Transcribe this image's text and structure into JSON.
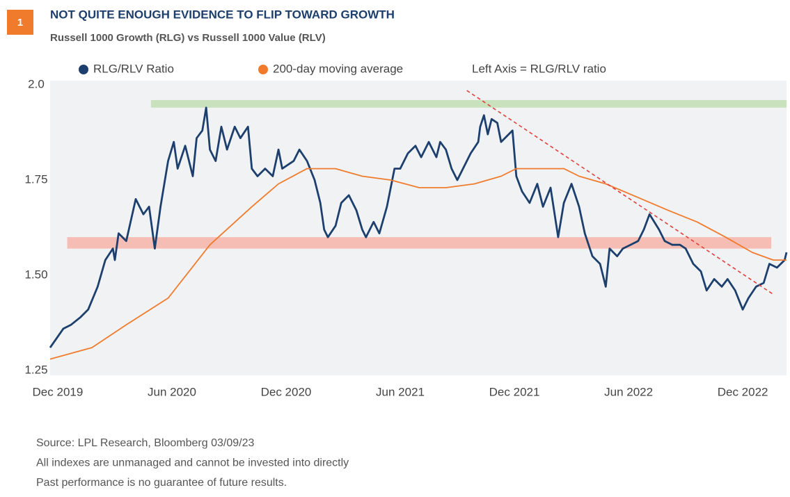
{
  "chart_data": {
    "type": "line",
    "figure_number": "1",
    "title": "NOT QUITE ENOUGH EVIDENCE TO FLIP TOWARD GROWTH",
    "subtitle": "Russell 1000 Growth (RLG) vs Russell 1000 Value (RLV)",
    "axis_note": "Left Axis = RLG/RLV ratio",
    "notes": [
      "Source: LPL Research, Bloomberg  03/09/23",
      "All indexes are unmanaged and cannot be invested into directly",
      "Past performance is no guarantee of future results."
    ],
    "xlim": [
      -0.4,
      38.3
    ],
    "xticks": [
      {
        "value": 0,
        "label": "Dec 2019"
      },
      {
        "value": 6,
        "label": "Jun 2020"
      },
      {
        "value": 12,
        "label": "Dec 2020"
      },
      {
        "value": 18,
        "label": "Jun 2021"
      },
      {
        "value": 24,
        "label": "Dec 2021"
      },
      {
        "value": 30,
        "label": "Jun 2022"
      },
      {
        "value": 36,
        "label": "Dec 2022"
      }
    ],
    "ylim": [
      1.25,
      2.0
    ],
    "yticks": [
      {
        "value": 2.0,
        "label": "2.0"
      },
      1.75,
      {
        "value": 1.5,
        "label": "1.50"
      },
      1.25
    ],
    "grid": false,
    "bands": [
      {
        "x": [
          4.9,
          38.3
        ],
        "y": [
          1.94,
          1.96
        ],
        "color": "#c9e2bd"
      },
      {
        "x": [
          0.5,
          37.5
        ],
        "y": [
          1.57,
          1.6
        ],
        "color": "#f5bdb3"
      }
    ],
    "trend_line": {
      "x": [
        21.5,
        37.6
      ],
      "y": [
        1.985,
        1.45
      ],
      "color": "#e0403a"
    },
    "series": [
      {
        "name": "RLG/RLV Ratio",
        "color": "#1c3f6e",
        "x": [
          -0.4,
          0.3,
          0.7,
          1.2,
          1.6,
          2.1,
          2.5,
          2.9,
          3.0,
          3.2,
          3.6,
          4.1,
          4.5,
          4.8,
          5.1,
          5.4,
          5.8,
          6.1,
          6.3,
          6.7,
          7.1,
          7.3,
          7.6,
          7.8,
          8.0,
          8.3,
          8.6,
          8.9,
          9.3,
          9.6,
          10.0,
          10.2,
          10.5,
          10.9,
          11.3,
          11.6,
          11.8,
          12.4,
          12.7,
          13.1,
          13.5,
          13.8,
          14.0,
          14.2,
          14.6,
          14.9,
          15.3,
          15.7,
          16.0,
          16.2,
          16.6,
          16.9,
          17.3,
          17.7,
          18.0,
          18.4,
          18.8,
          19.1,
          19.5,
          19.9,
          20.1,
          20.4,
          20.7,
          21.0,
          21.3,
          21.7,
          22.1,
          22.2,
          22.4,
          22.6,
          22.8,
          23.1,
          23.3,
          23.9,
          24.1,
          24.4,
          24.8,
          25.2,
          25.5,
          25.9,
          26.3,
          26.6,
          27.0,
          27.4,
          27.7,
          28.1,
          28.5,
          28.8,
          29.0,
          29.4,
          29.7,
          30.1,
          30.5,
          30.8,
          31.1,
          31.6,
          31.9,
          32.3,
          32.7,
          33.0,
          33.4,
          33.8,
          34.1,
          34.5,
          34.9,
          35.2,
          35.6,
          36.0,
          36.3,
          36.7,
          37.1,
          37.4,
          37.8,
          38.2,
          38.3
        ],
        "values": [
          1.31,
          1.36,
          1.37,
          1.39,
          1.41,
          1.47,
          1.54,
          1.57,
          1.54,
          1.61,
          1.59,
          1.7,
          1.66,
          1.68,
          1.57,
          1.68,
          1.8,
          1.85,
          1.78,
          1.84,
          1.76,
          1.86,
          1.88,
          1.94,
          1.83,
          1.8,
          1.89,
          1.83,
          1.89,
          1.86,
          1.89,
          1.78,
          1.76,
          1.78,
          1.76,
          1.83,
          1.78,
          1.8,
          1.83,
          1.8,
          1.75,
          1.69,
          1.62,
          1.6,
          1.63,
          1.69,
          1.71,
          1.67,
          1.62,
          1.6,
          1.64,
          1.61,
          1.68,
          1.78,
          1.78,
          1.82,
          1.84,
          1.81,
          1.85,
          1.81,
          1.85,
          1.83,
          1.78,
          1.75,
          1.78,
          1.82,
          1.85,
          1.89,
          1.92,
          1.87,
          1.91,
          1.9,
          1.85,
          1.88,
          1.76,
          1.72,
          1.69,
          1.74,
          1.68,
          1.73,
          1.6,
          1.69,
          1.74,
          1.68,
          1.61,
          1.55,
          1.53,
          1.47,
          1.57,
          1.55,
          1.57,
          1.58,
          1.59,
          1.62,
          1.66,
          1.62,
          1.59,
          1.58,
          1.58,
          1.57,
          1.53,
          1.51,
          1.46,
          1.49,
          1.47,
          1.49,
          1.46,
          1.41,
          1.44,
          1.47,
          1.48,
          1.53,
          1.52,
          1.54,
          1.56
        ]
      },
      {
        "name": "200-day moving average",
        "color": "#f07b2c",
        "x": [
          -0.4,
          1.8,
          3.6,
          5.8,
          8.0,
          10.2,
          11.6,
          13.1,
          14.6,
          16.0,
          17.5,
          19.0,
          20.4,
          21.9,
          23.3,
          24.1,
          25.5,
          26.6,
          27.4,
          28.8,
          30.7,
          32.1,
          33.6,
          35.1,
          36.5,
          37.6,
          38.3
        ],
        "values": [
          1.28,
          1.31,
          1.37,
          1.44,
          1.58,
          1.68,
          1.74,
          1.78,
          1.78,
          1.76,
          1.75,
          1.73,
          1.73,
          1.74,
          1.76,
          1.78,
          1.78,
          1.78,
          1.76,
          1.74,
          1.7,
          1.67,
          1.64,
          1.6,
          1.56,
          1.54,
          1.54
        ]
      }
    ]
  }
}
